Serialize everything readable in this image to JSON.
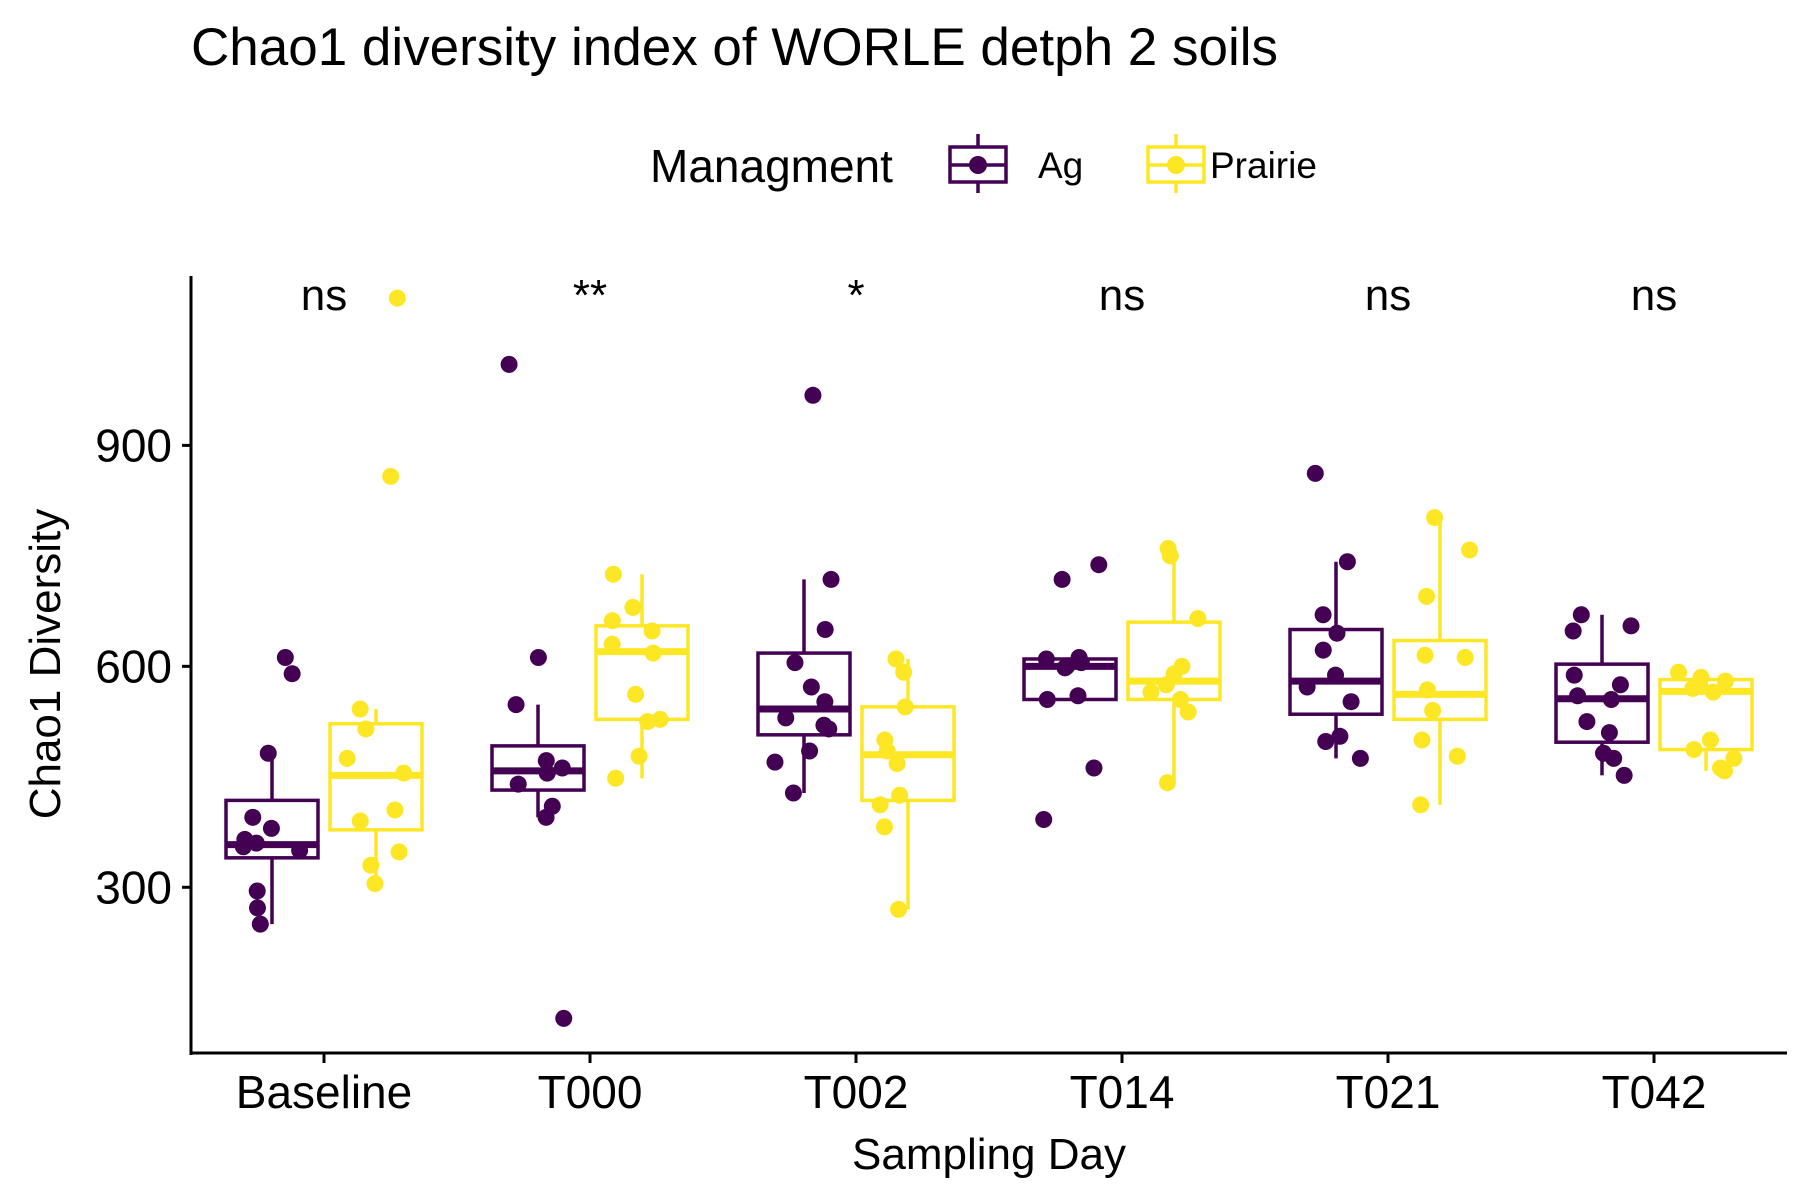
{
  "chart_data": {
    "type": "box",
    "title": "Chao1 diversity index of WORLE detph 2 soils",
    "xlabel": "Sampling Day",
    "ylabel": "Chao1 Diversity",
    "ylim": [
      75,
      1130
    ],
    "yticks": [
      300,
      600,
      900
    ],
    "grid": false,
    "legend": {
      "title": "Managment",
      "position": "top",
      "entries": [
        "Ag",
        "Prairie"
      ]
    },
    "categories": [
      "Baseline",
      "T000",
      "T002",
      "T014",
      "T021",
      "T042"
    ],
    "significance": [
      "ns",
      "**",
      "*",
      "ns",
      "ns",
      "ns"
    ],
    "series": [
      {
        "name": "Ag",
        "color": "#440154",
        "boxes": [
          {
            "q1": 340,
            "median": 358,
            "q3": 418,
            "whisker_low": 250,
            "whisker_high": 482
          },
          {
            "q1": 432,
            "median": 458,
            "q3": 492,
            "whisker_low": 395,
            "whisker_high": 548
          },
          {
            "q1": 507,
            "median": 542,
            "q3": 618,
            "whisker_low": 428,
            "whisker_high": 718
          },
          {
            "q1": 555,
            "median": 600,
            "q3": 610,
            "whisker_low": 555,
            "whisker_high": 610
          },
          {
            "q1": 535,
            "median": 580,
            "q3": 650,
            "whisker_low": 475,
            "whisker_high": 742
          },
          {
            "q1": 497,
            "median": 556,
            "q3": 603,
            "whisker_low": 452,
            "whisker_high": 670
          }
        ],
        "points": [
          [
            482,
            380,
            360,
            355,
            395,
            365,
            350,
            295,
            272,
            250,
            612,
            590
          ],
          [
            472,
            462,
            455,
            440,
            410,
            395,
            548,
            612,
            1010,
            122
          ],
          [
            718,
            650,
            605,
            572,
            552,
            530,
            520,
            515,
            485,
            470,
            428,
            968
          ],
          [
            612,
            610,
            605,
            600,
            598,
            560,
            555,
            462,
            738,
            718,
            392
          ],
          [
            742,
            670,
            645,
            622,
            588,
            572,
            552,
            505,
            498,
            475,
            862
          ],
          [
            670,
            655,
            648,
            588,
            575,
            560,
            555,
            525,
            510,
            482,
            475,
            452
          ]
        ]
      },
      {
        "name": "Prairie",
        "color": "#fde725",
        "boxes": [
          {
            "q1": 378,
            "median": 452,
            "q3": 522,
            "whisker_low": 305,
            "whisker_high": 542
          },
          {
            "q1": 528,
            "median": 620,
            "q3": 655,
            "whisker_low": 448,
            "whisker_high": 725
          },
          {
            "q1": 418,
            "median": 480,
            "q3": 545,
            "whisker_low": 270,
            "whisker_high": 610
          },
          {
            "q1": 555,
            "median": 580,
            "q3": 660,
            "whisker_low": 442,
            "whisker_high": 760
          },
          {
            "q1": 528,
            "median": 562,
            "q3": 635,
            "whisker_low": 412,
            "whisker_high": 802
          },
          {
            "q1": 487,
            "median": 566,
            "q3": 582,
            "whisker_low": 458,
            "whisker_high": 592
          }
        ],
        "points": [
          [
            542,
            515,
            475,
            455,
            405,
            390,
            348,
            330,
            305,
            858,
            1100
          ],
          [
            725,
            680,
            662,
            648,
            630,
            618,
            562,
            528,
            525,
            478,
            448
          ],
          [
            610,
            592,
            545,
            500,
            485,
            468,
            425,
            412,
            382,
            270
          ],
          [
            760,
            750,
            665,
            600,
            590,
            575,
            565,
            555,
            538,
            442
          ],
          [
            802,
            758,
            695,
            615,
            612,
            568,
            540,
            500,
            478,
            412
          ],
          [
            592,
            585,
            580,
            575,
            570,
            565,
            500,
            487,
            475,
            462,
            458
          ]
        ]
      }
    ]
  }
}
